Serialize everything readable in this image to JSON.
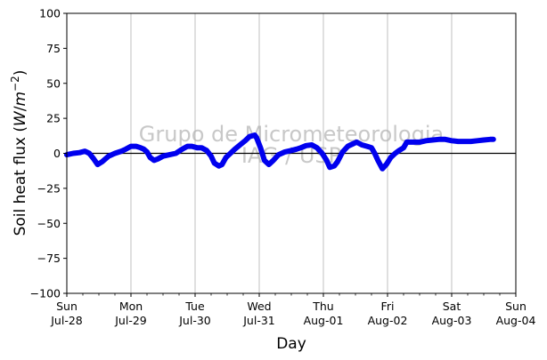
{
  "chart_data": {
    "type": "line",
    "xlabel": "Day",
    "ylabel": "Soil heat flux (W/m⁻²)",
    "ylabel_parts": {
      "prefix": "Soil heat flux (",
      "unit_W": "W",
      "unit_slash": "/",
      "unit_m": "m",
      "unit_exp": "−2",
      "suffix": ")"
    },
    "ylim": [
      -100,
      100
    ],
    "xlim": [
      "2024-07-28 00:00",
      "2024-08-04 00:00"
    ],
    "yticks": [
      100,
      75,
      50,
      25,
      0,
      -25,
      -50,
      -75,
      -100
    ],
    "yticklabels": [
      "100",
      "75",
      "50",
      "25",
      "0",
      "−25",
      "−50",
      "−75",
      "−100"
    ],
    "xticks": [
      {
        "day": "Sun",
        "date": "Jul-28",
        "x": 0
      },
      {
        "day": "Mon",
        "date": "Jul-29",
        "x": 1
      },
      {
        "day": "Tue",
        "date": "Jul-30",
        "x": 2
      },
      {
        "day": "Wed",
        "date": "Jul-31",
        "x": 3
      },
      {
        "day": "Thu",
        "date": "Aug-01",
        "x": 4
      },
      {
        "day": "Fri",
        "date": "Aug-02",
        "x": 5
      },
      {
        "day": "Sat",
        "date": "Aug-03",
        "x": 6
      },
      {
        "day": "Sun",
        "date": "Aug-04",
        "x": 7
      }
    ],
    "grid": "vertical",
    "zero_line": true,
    "series": [
      {
        "color": "#0000ee",
        "points": [
          [
            0.0,
            -1
          ],
          [
            0.1,
            0
          ],
          [
            0.2,
            0.5
          ],
          [
            0.28,
            1.5
          ],
          [
            0.35,
            0
          ],
          [
            0.42,
            -4
          ],
          [
            0.48,
            -8
          ],
          [
            0.55,
            -6
          ],
          [
            0.65,
            -2
          ],
          [
            0.75,
            0
          ],
          [
            0.85,
            1.5
          ],
          [
            0.92,
            3
          ],
          [
            1.0,
            5
          ],
          [
            1.08,
            5
          ],
          [
            1.15,
            4
          ],
          [
            1.2,
            3
          ],
          [
            1.25,
            1
          ],
          [
            1.3,
            -3
          ],
          [
            1.36,
            -5
          ],
          [
            1.42,
            -4
          ],
          [
            1.5,
            -2
          ],
          [
            1.6,
            -1
          ],
          [
            1.7,
            0
          ],
          [
            1.8,
            3
          ],
          [
            1.88,
            5
          ],
          [
            1.95,
            5
          ],
          [
            2.03,
            4
          ],
          [
            2.1,
            4
          ],
          [
            2.18,
            2
          ],
          [
            2.25,
            -2
          ],
          [
            2.3,
            -7
          ],
          [
            2.37,
            -9
          ],
          [
            2.42,
            -8
          ],
          [
            2.48,
            -3
          ],
          [
            2.55,
            0
          ],
          [
            2.62,
            3
          ],
          [
            2.7,
            6
          ],
          [
            2.78,
            9
          ],
          [
            2.85,
            12
          ],
          [
            2.93,
            13
          ],
          [
            2.96,
            11
          ],
          [
            3.02,
            4
          ],
          [
            3.08,
            -5
          ],
          [
            3.15,
            -8
          ],
          [
            3.22,
            -5
          ],
          [
            3.3,
            -1
          ],
          [
            3.4,
            1
          ],
          [
            3.5,
            2
          ],
          [
            3.58,
            3
          ],
          [
            3.65,
            4
          ],
          [
            3.73,
            5.5
          ],
          [
            3.82,
            6
          ],
          [
            3.9,
            4
          ],
          [
            3.98,
            0
          ],
          [
            4.05,
            -5
          ],
          [
            4.1,
            -10
          ],
          [
            4.17,
            -9
          ],
          [
            4.22,
            -6
          ],
          [
            4.3,
            1
          ],
          [
            4.38,
            5
          ],
          [
            4.47,
            7
          ],
          [
            4.52,
            8
          ],
          [
            4.6,
            6
          ],
          [
            4.68,
            5
          ],
          [
            4.75,
            4
          ],
          [
            4.8,
            0
          ],
          [
            4.85,
            -5
          ],
          [
            4.92,
            -11
          ],
          [
            4.98,
            -8
          ],
          [
            5.05,
            -3
          ],
          [
            5.12,
            0
          ],
          [
            5.18,
            2
          ],
          [
            5.25,
            4
          ],
          [
            5.3,
            8
          ],
          [
            5.4,
            8
          ],
          [
            5.5,
            8
          ],
          [
            5.6,
            9
          ],
          [
            5.7,
            9.5
          ],
          [
            5.8,
            10
          ],
          [
            5.9,
            10
          ],
          [
            6.0,
            9
          ],
          [
            6.1,
            8.5
          ],
          [
            6.2,
            8.5
          ],
          [
            6.3,
            8.5
          ],
          [
            6.4,
            9
          ],
          [
            6.5,
            9.5
          ],
          [
            6.6,
            10
          ],
          [
            6.65,
            10
          ]
        ]
      }
    ],
    "watermark": [
      "Grupo de Micrometeorologia",
      "IAG / USP"
    ]
  }
}
